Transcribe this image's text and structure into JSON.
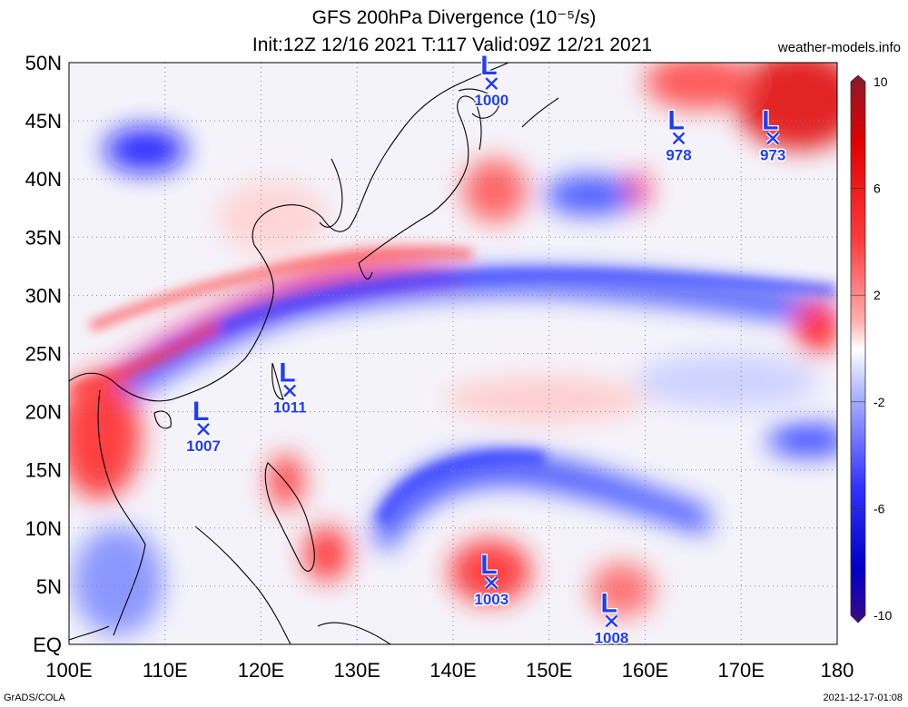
{
  "title": {
    "line1": "GFS 200hPa Divergence (10⁻⁵/s)",
    "line2": "Init:12Z 12/16 2021 T:117 Valid:09Z 12/21 2021"
  },
  "source": "weather-models.info",
  "footer": {
    "left": "GrADS/COLA",
    "right": "2021-12-17-01:08"
  },
  "lon_labels": [
    "100E",
    "110E",
    "120E",
    "130E",
    "140E",
    "150E",
    "160E",
    "170E",
    "180"
  ],
  "lat_labels": [
    "EQ",
    "5N",
    "10N",
    "15N",
    "20N",
    "25N",
    "30N",
    "35N",
    "40N",
    "45N",
    "50N"
  ],
  "colorbar": {
    "labels": [
      "10",
      "6",
      "2",
      "-2",
      "-6",
      "-10"
    ],
    "min": -10,
    "max": 10
  },
  "lows": [
    {
      "lon": 144.0,
      "lat": 48.2,
      "letter": "L",
      "value": "1000"
    },
    {
      "lon": 163.5,
      "lat": 43.5,
      "letter": "L",
      "value": "978"
    },
    {
      "lon": 173.3,
      "lat": 43.5,
      "letter": "L",
      "value": "973"
    },
    {
      "lon": 123.0,
      "lat": 21.8,
      "letter": "L",
      "value": "1011"
    },
    {
      "lon": 114.0,
      "lat": 18.5,
      "letter": "L",
      "value": "1007"
    },
    {
      "lon": 144.0,
      "lat": 5.3,
      "letter": "L",
      "value": "1003"
    },
    {
      "lon": 156.5,
      "lat": 2.0,
      "letter": "L",
      "value": "1008"
    }
  ],
  "colors": {
    "divergence": "#ff0000",
    "convergence": "#0000ff",
    "lowmarker": "#1f3cff"
  }
}
